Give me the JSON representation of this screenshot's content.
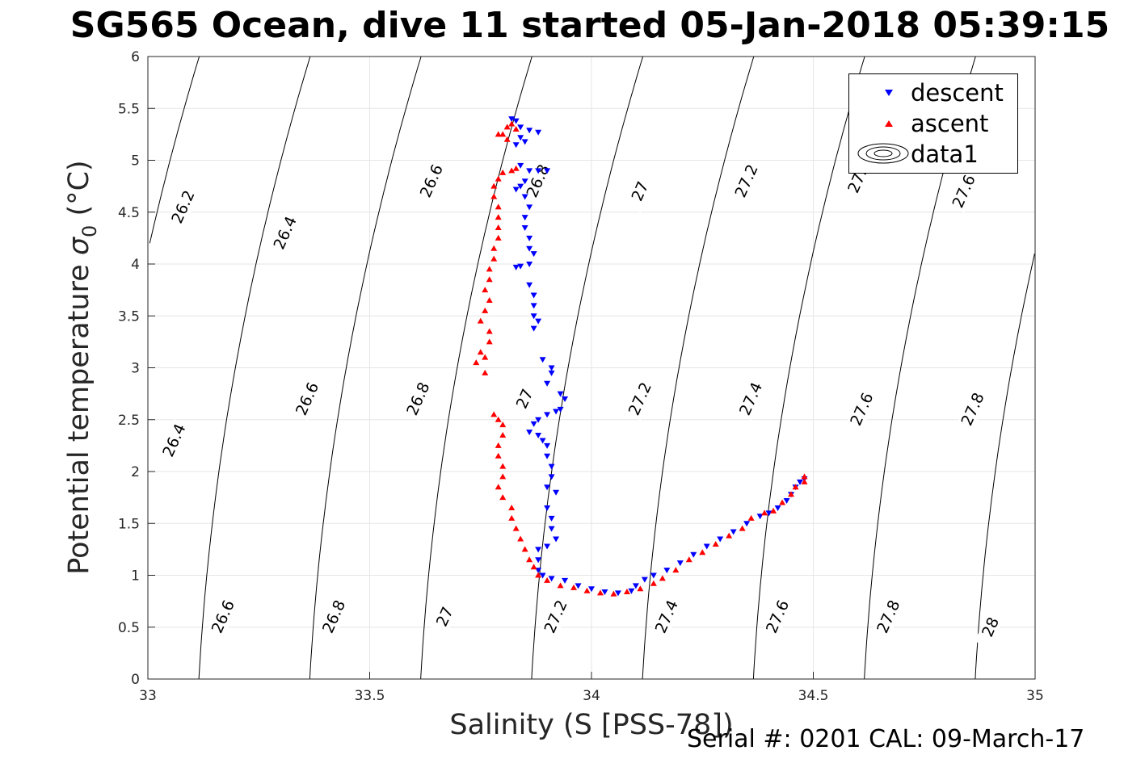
{
  "title": "SG565 Ocean, dive 11 started 05-Jan-2018 05:39:15",
  "footer": "Serial #: 0201  CAL: 09-March-17",
  "colors": {
    "descent": "#0000ff",
    "ascent": "#ff0000",
    "contour": "#000000",
    "grid": "#e6e6e6"
  },
  "legend": {
    "descent": "descent",
    "ascent": "ascent",
    "data1": "data1"
  },
  "chart_data": {
    "type": "scatter",
    "title": "SG565 Ocean, dive 11 started 05-Jan-2018 05:39:15",
    "xlabel": "Salinity (S [PSS-78])",
    "ylabel_text": "Potential temperature ",
    "ylabel_sym": "σ",
    "ylabel_sub": "0",
    "ylabel_unit": " (°C)",
    "xlim": [
      33,
      35
    ],
    "ylim": [
      0,
      6
    ],
    "xticks": [
      "33",
      "33.5",
      "34",
      "34.5",
      "35"
    ],
    "yticks": [
      "0",
      "0.5",
      "1",
      "1.5",
      "2",
      "2.5",
      "3",
      "3.5",
      "4",
      "4.5",
      "5",
      "5.5",
      "6"
    ],
    "grid": true,
    "legend_position": "top-right",
    "contours": {
      "levels": [
        26.2,
        26.4,
        26.6,
        26.8,
        27,
        27.2,
        27.4,
        27.6,
        27.8,
        28
      ],
      "bottom_salinity": [
        32.615,
        32.865,
        33.115,
        33.365,
        33.615,
        33.865,
        34.115,
        34.365,
        34.615,
        34.865
      ],
      "labels": [
        {
          "text": "26.2",
          "s": 33.08,
          "t": 4.55
        },
        {
          "text": "26.4",
          "s": 33.31,
          "t": 4.3
        },
        {
          "text": "26.6",
          "s": 33.64,
          "t": 4.8
        },
        {
          "text": "26.8",
          "s": 33.88,
          "t": 4.8
        },
        {
          "text": "27",
          "s": 34.11,
          "t": 4.7
        },
        {
          "text": "27.2",
          "s": 34.35,
          "t": 4.8
        },
        {
          "text": "27.",
          "s": 34.6,
          "t": 4.8
        },
        {
          "text": "27.6",
          "s": 34.84,
          "t": 4.7
        },
        {
          "text": "26.4",
          "s": 33.06,
          "t": 2.3
        },
        {
          "text": "26.6",
          "s": 33.36,
          "t": 2.7
        },
        {
          "text": "26.8",
          "s": 33.61,
          "t": 2.7
        },
        {
          "text": "27",
          "s": 33.85,
          "t": 2.7
        },
        {
          "text": "27.2",
          "s": 34.11,
          "t": 2.7
        },
        {
          "text": "27.4",
          "s": 34.36,
          "t": 2.7
        },
        {
          "text": "27.6",
          "s": 34.61,
          "t": 2.6
        },
        {
          "text": "27.8",
          "s": 34.86,
          "t": 2.6
        },
        {
          "text": "26.6",
          "s": 33.17,
          "t": 0.6
        },
        {
          "text": "26.8",
          "s": 33.42,
          "t": 0.6
        },
        {
          "text": "27",
          "s": 33.67,
          "t": 0.6
        },
        {
          "text": "27.2",
          "s": 33.92,
          "t": 0.6
        },
        {
          "text": "27.4",
          "s": 34.17,
          "t": 0.6
        },
        {
          "text": "27.6",
          "s": 34.42,
          "t": 0.6
        },
        {
          "text": "27.8",
          "s": 34.67,
          "t": 0.6
        },
        {
          "text": "28",
          "s": 34.9,
          "t": 0.5
        }
      ]
    },
    "series": [
      {
        "name": "descent",
        "marker": "triangle-down",
        "points": [
          [
            33.82,
            5.4
          ],
          [
            33.83,
            5.38
          ],
          [
            33.84,
            5.32
          ],
          [
            33.86,
            5.29
          ],
          [
            33.88,
            5.27
          ],
          [
            33.84,
            5.22
          ],
          [
            33.85,
            5.18
          ],
          [
            33.83,
            5.15
          ],
          [
            33.84,
            4.95
          ],
          [
            33.86,
            4.9
          ],
          [
            33.88,
            4.9
          ],
          [
            33.9,
            4.9
          ],
          [
            33.85,
            4.8
          ],
          [
            33.84,
            4.75
          ],
          [
            33.83,
            4.72
          ],
          [
            33.85,
            4.65
          ],
          [
            33.86,
            4.55
          ],
          [
            33.85,
            4.45
          ],
          [
            33.85,
            4.35
          ],
          [
            33.86,
            4.25
          ],
          [
            33.86,
            4.15
          ],
          [
            33.87,
            4.1
          ],
          [
            33.86,
            4.0
          ],
          [
            33.84,
            3.98
          ],
          [
            33.83,
            3.97
          ],
          [
            33.86,
            3.8
          ],
          [
            33.87,
            3.7
          ],
          [
            33.87,
            3.6
          ],
          [
            33.87,
            3.5
          ],
          [
            33.88,
            3.45
          ],
          [
            33.87,
            3.38
          ],
          [
            33.89,
            3.08
          ],
          [
            33.91,
            3.0
          ],
          [
            33.91,
            2.95
          ],
          [
            33.9,
            2.85
          ],
          [
            33.93,
            2.75
          ],
          [
            33.94,
            2.7
          ],
          [
            33.93,
            2.6
          ],
          [
            33.92,
            2.58
          ],
          [
            33.9,
            2.55
          ],
          [
            33.88,
            2.5
          ],
          [
            33.87,
            2.46
          ],
          [
            33.86,
            2.38
          ],
          [
            33.88,
            2.35
          ],
          [
            33.89,
            2.3
          ],
          [
            33.9,
            2.25
          ],
          [
            33.9,
            2.15
          ],
          [
            33.91,
            2.05
          ],
          [
            33.91,
            1.95
          ],
          [
            33.9,
            1.85
          ],
          [
            33.92,
            1.8
          ],
          [
            33.9,
            1.65
          ],
          [
            33.91,
            1.55
          ],
          [
            33.91,
            1.45
          ],
          [
            33.92,
            1.35
          ],
          [
            33.9,
            1.28
          ],
          [
            33.88,
            1.25
          ],
          [
            33.88,
            1.15
          ],
          [
            33.88,
            1.05
          ],
          [
            33.89,
            1.0
          ],
          [
            33.91,
            0.97
          ],
          [
            33.94,
            0.95
          ],
          [
            33.97,
            0.9
          ],
          [
            34.0,
            0.87
          ],
          [
            34.03,
            0.84
          ],
          [
            34.06,
            0.83
          ],
          [
            34.09,
            0.85
          ],
          [
            34.1,
            0.9
          ],
          [
            34.12,
            0.96
          ],
          [
            34.14,
            1.0
          ],
          [
            34.17,
            1.05
          ],
          [
            34.2,
            1.12
          ],
          [
            34.23,
            1.2
          ],
          [
            34.26,
            1.28
          ],
          [
            34.29,
            1.35
          ],
          [
            34.32,
            1.42
          ],
          [
            34.35,
            1.5
          ],
          [
            34.38,
            1.57
          ],
          [
            34.4,
            1.6
          ],
          [
            34.42,
            1.65
          ],
          [
            34.44,
            1.72
          ],
          [
            34.45,
            1.78
          ],
          [
            34.46,
            1.85
          ],
          [
            34.47,
            1.9
          ],
          [
            34.48,
            1.93
          ]
        ]
      },
      {
        "name": "ascent",
        "marker": "triangle-up",
        "points": [
          [
            33.8,
            5.25
          ],
          [
            33.81,
            5.32
          ],
          [
            33.82,
            5.35
          ],
          [
            33.83,
            5.3
          ],
          [
            33.81,
            5.2
          ],
          [
            33.79,
            5.25
          ],
          [
            33.83,
            4.92
          ],
          [
            33.82,
            4.9
          ],
          [
            33.8,
            4.88
          ],
          [
            33.79,
            4.82
          ],
          [
            33.78,
            4.75
          ],
          [
            33.78,
            4.65
          ],
          [
            33.79,
            4.55
          ],
          [
            33.79,
            4.45
          ],
          [
            33.79,
            4.35
          ],
          [
            33.79,
            4.25
          ],
          [
            33.78,
            4.15
          ],
          [
            33.78,
            4.05
          ],
          [
            33.77,
            3.95
          ],
          [
            33.77,
            3.85
          ],
          [
            33.76,
            3.75
          ],
          [
            33.77,
            3.65
          ],
          [
            33.76,
            3.55
          ],
          [
            33.75,
            3.45
          ],
          [
            33.77,
            3.35
          ],
          [
            33.77,
            3.25
          ],
          [
            33.75,
            3.15
          ],
          [
            33.74,
            3.05
          ],
          [
            33.76,
            3.1
          ],
          [
            33.76,
            2.95
          ],
          [
            33.78,
            2.55
          ],
          [
            33.79,
            2.5
          ],
          [
            33.8,
            2.45
          ],
          [
            33.8,
            2.35
          ],
          [
            33.79,
            2.25
          ],
          [
            33.79,
            2.15
          ],
          [
            33.8,
            2.05
          ],
          [
            33.8,
            1.95
          ],
          [
            33.79,
            1.85
          ],
          [
            33.8,
            1.75
          ],
          [
            33.82,
            1.65
          ],
          [
            33.82,
            1.55
          ],
          [
            33.83,
            1.45
          ],
          [
            33.84,
            1.35
          ],
          [
            33.85,
            1.25
          ],
          [
            33.86,
            1.15
          ],
          [
            33.87,
            1.08
          ],
          [
            33.88,
            1.0
          ],
          [
            33.9,
            0.95
          ],
          [
            33.93,
            0.9
          ],
          [
            33.96,
            0.88
          ],
          [
            33.99,
            0.85
          ],
          [
            34.02,
            0.83
          ],
          [
            34.05,
            0.82
          ],
          [
            34.08,
            0.84
          ],
          [
            34.11,
            0.87
          ],
          [
            34.14,
            0.92
          ],
          [
            34.16,
            0.97
          ],
          [
            34.19,
            1.05
          ],
          [
            34.22,
            1.15
          ],
          [
            34.25,
            1.22
          ],
          [
            34.28,
            1.3
          ],
          [
            34.31,
            1.38
          ],
          [
            34.34,
            1.45
          ],
          [
            34.36,
            1.55
          ],
          [
            34.39,
            1.6
          ],
          [
            34.41,
            1.62
          ],
          [
            34.43,
            1.7
          ],
          [
            34.45,
            1.78
          ],
          [
            34.46,
            1.85
          ],
          [
            34.48,
            1.9
          ],
          [
            34.48,
            1.95
          ]
        ]
      }
    ]
  }
}
